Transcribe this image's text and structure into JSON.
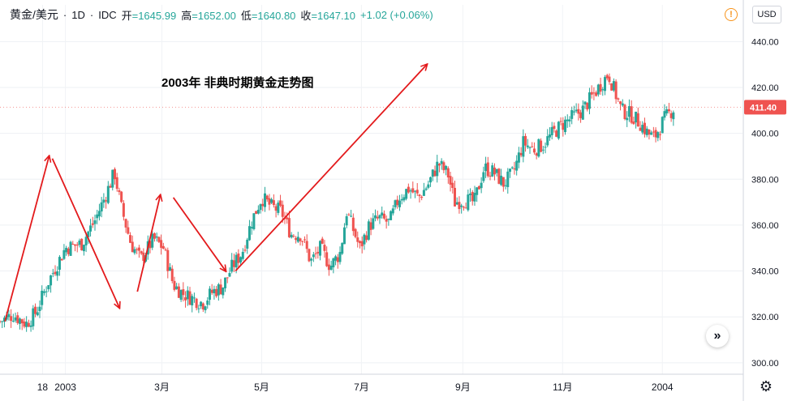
{
  "legend": {
    "symbol": "黄金/美元",
    "interval": "1D",
    "exchange": "IDC",
    "open_label": "开",
    "open_value": "=1645.99",
    "high_label": "高",
    "high_value": "=1652.00",
    "low_label": "低",
    "low_value": "=1640.80",
    "close_label": "收",
    "close_value": "=1647.10",
    "change": "+1.02 (+0.06%)"
  },
  "toolbar": {
    "warning_glyph": "!",
    "currency": "USD",
    "scroll_glyph": "»",
    "settings_glyph": "⚙"
  },
  "colors": {
    "up": "#26a69a",
    "down": "#ef5350",
    "arrow": "#e31a1c",
    "price_tag": "#ef5350",
    "grid": "#e0e3eb"
  },
  "chart_data": {
    "type": "candlestick",
    "title": "2003年 非典时期黄金走势图",
    "y_ticks": [
      300,
      320,
      340,
      360,
      380,
      400,
      420,
      440
    ],
    "ylim": [
      295,
      456
    ],
    "x_ticks": [
      "18",
      "2003",
      "3月",
      "5月",
      "7月",
      "9月",
      "11月",
      "2004"
    ],
    "last_price": "411.40",
    "grid": true,
    "series_trend": [
      {
        "t": 0,
        "p": 318
      },
      {
        "t": 8,
        "p": 321
      },
      {
        "t": 16,
        "p": 317
      },
      {
        "t": 22,
        "p": 322
      },
      {
        "t": 30,
        "p": 336
      },
      {
        "t": 40,
        "p": 350
      },
      {
        "t": 50,
        "p": 352
      },
      {
        "t": 58,
        "p": 362
      },
      {
        "t": 64,
        "p": 372
      },
      {
        "t": 70,
        "p": 383
      },
      {
        "t": 74,
        "p": 368
      },
      {
        "t": 80,
        "p": 352
      },
      {
        "t": 86,
        "p": 345
      },
      {
        "t": 94,
        "p": 354
      },
      {
        "t": 100,
        "p": 350
      },
      {
        "t": 106,
        "p": 334
      },
      {
        "t": 112,
        "p": 330
      },
      {
        "t": 118,
        "p": 328
      },
      {
        "t": 124,
        "p": 326
      },
      {
        "t": 130,
        "p": 331
      },
      {
        "t": 136,
        "p": 333
      },
      {
        "t": 142,
        "p": 342
      },
      {
        "t": 148,
        "p": 348
      },
      {
        "t": 154,
        "p": 362
      },
      {
        "t": 160,
        "p": 372
      },
      {
        "t": 166,
        "p": 368
      },
      {
        "t": 172,
        "p": 366
      },
      {
        "t": 178,
        "p": 356
      },
      {
        "t": 184,
        "p": 356
      },
      {
        "t": 190,
        "p": 344
      },
      {
        "t": 196,
        "p": 350
      },
      {
        "t": 202,
        "p": 342
      },
      {
        "t": 208,
        "p": 348
      },
      {
        "t": 212,
        "p": 366
      },
      {
        "t": 216,
        "p": 358
      },
      {
        "t": 220,
        "p": 350
      },
      {
        "t": 226,
        "p": 360
      },
      {
        "t": 232,
        "p": 363
      },
      {
        "t": 238,
        "p": 361
      },
      {
        "t": 244,
        "p": 372
      },
      {
        "t": 250,
        "p": 376
      },
      {
        "t": 256,
        "p": 372
      },
      {
        "t": 262,
        "p": 378
      },
      {
        "t": 268,
        "p": 387
      },
      {
        "t": 274,
        "p": 382
      },
      {
        "t": 278,
        "p": 370
      },
      {
        "t": 284,
        "p": 371
      },
      {
        "t": 290,
        "p": 370
      },
      {
        "t": 296,
        "p": 385
      },
      {
        "t": 302,
        "p": 383
      },
      {
        "t": 308,
        "p": 378
      },
      {
        "t": 314,
        "p": 383
      },
      {
        "t": 320,
        "p": 396
      },
      {
        "t": 326,
        "p": 393
      },
      {
        "t": 332,
        "p": 395
      },
      {
        "t": 338,
        "p": 400
      },
      {
        "t": 344,
        "p": 404
      },
      {
        "t": 350,
        "p": 407
      },
      {
        "t": 356,
        "p": 410
      },
      {
        "t": 362,
        "p": 416
      },
      {
        "t": 368,
        "p": 422
      },
      {
        "t": 372,
        "p": 426
      },
      {
        "t": 376,
        "p": 418
      },
      {
        "t": 380,
        "p": 410
      },
      {
        "t": 386,
        "p": 408
      },
      {
        "t": 392,
        "p": 404
      },
      {
        "t": 396,
        "p": 400
      },
      {
        "t": 400,
        "p": 398
      },
      {
        "t": 406,
        "p": 406
      },
      {
        "t": 412,
        "p": 411
      }
    ],
    "annotation_arrows": [
      {
        "from": [
          -37,
          318
        ],
        "to": [
          -10,
          390
        ]
      },
      {
        "from": [
          -8,
          389
        ],
        "to": [
          33,
          324
        ]
      },
      {
        "from": [
          44,
          331
        ],
        "to": [
          58,
          373
        ]
      },
      {
        "from": [
          66,
          372
        ],
        "to": [
          98,
          340
        ]
      },
      {
        "from": [
          104,
          340
        ],
        "to": [
          221,
          430
        ]
      }
    ],
    "arrow_time_axis": "days since 2003-01-01"
  }
}
